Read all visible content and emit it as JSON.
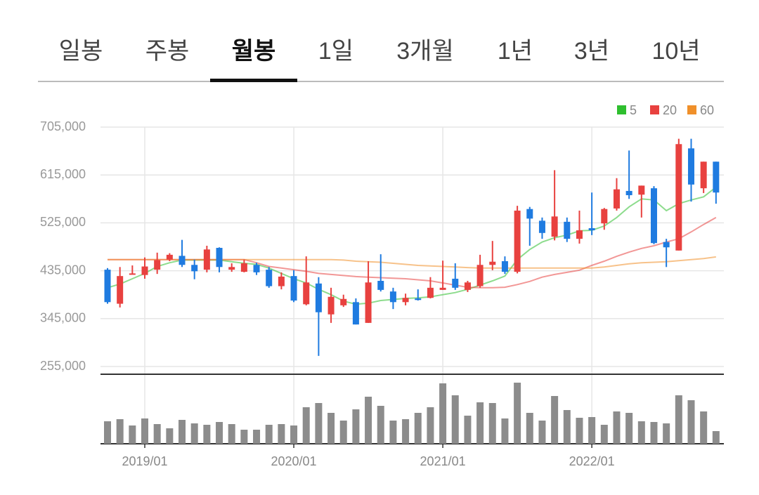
{
  "tabs": [
    "일봉",
    "주봉",
    "월봉",
    "1일",
    "3개월",
    "1년",
    "3년",
    "10년"
  ],
  "selected_tab": 2,
  "chart_data": {
    "type": "candlestick",
    "categories": [
      null,
      null,
      null,
      "2019/01",
      null,
      null,
      null,
      null,
      null,
      null,
      null,
      null,
      null,
      null,
      null,
      "2020/01",
      null,
      null,
      null,
      null,
      null,
      null,
      null,
      null,
      null,
      null,
      null,
      "2021/01",
      null,
      null,
      null,
      null,
      null,
      null,
      null,
      null,
      null,
      null,
      null,
      "2022/01",
      null,
      null,
      null,
      null,
      null,
      null,
      null,
      null,
      null,
      null
    ],
    "open": [
      437000,
      373000,
      428000,
      427000,
      437000,
      456000,
      463000,
      446000,
      437000,
      478000,
      437000,
      433000,
      446000,
      437000,
      406000,
      425000,
      372000,
      411000,
      353000,
      370000,
      376000,
      337000,
      416000,
      396000,
      376000,
      383000,
      384000,
      399000,
      420000,
      399000,
      406000,
      446000,
      453000,
      433000,
      551000,
      529000,
      499000,
      527000,
      495000,
      515000,
      524000,
      552000,
      585000,
      578000,
      590000,
      489000,
      473000,
      665000,
      590000,
      640000
    ],
    "high": [
      440000,
      442000,
      445000,
      460000,
      469000,
      468000,
      493000,
      456000,
      482000,
      479000,
      449000,
      456000,
      450000,
      442000,
      432000,
      436000,
      462000,
      423000,
      403000,
      390000,
      383000,
      453000,
      466000,
      403000,
      392000,
      400000,
      423000,
      454000,
      449000,
      416000,
      465000,
      491000,
      462000,
      557000,
      555000,
      535000,
      624000,
      535000,
      548000,
      582000,
      553000,
      609000,
      661000,
      595000,
      594000,
      495000,
      683000,
      683000,
      640000,
      640000
    ],
    "low": [
      373000,
      366000,
      428000,
      420000,
      429000,
      453000,
      442000,
      419000,
      432000,
      432000,
      433000,
      432000,
      427000,
      403000,
      400000,
      376000,
      370000,
      275000,
      337000,
      367000,
      334000,
      337000,
      396000,
      363000,
      370000,
      379000,
      383000,
      399000,
      399000,
      395000,
      403000,
      436000,
      429000,
      430000,
      482000,
      495000,
      492000,
      489000,
      486000,
      502000,
      512000,
      548000,
      570000,
      535000,
      485000,
      442000,
      473000,
      565000,
      581000,
      561000
    ],
    "close": [
      376000,
      425000,
      430000,
      443000,
      455000,
      465000,
      446000,
      434000,
      475000,
      442000,
      442000,
      449000,
      432000,
      406000,
      424000,
      379000,
      413000,
      357000,
      386000,
      382000,
      334000,
      413000,
      399000,
      376000,
      384000,
      380000,
      403000,
      403000,
      403000,
      413000,
      446000,
      452000,
      433000,
      548000,
      533000,
      506000,
      537000,
      495000,
      511000,
      511000,
      551000,
      588000,
      577000,
      595000,
      487000,
      479000,
      673000,
      597000,
      640000,
      582000
    ],
    "up_color": "#e8413f",
    "down_color": "#1f7be0",
    "series": [
      {
        "name": "5",
        "color": "#2fbf2f",
        "values": [
          403000,
          410000,
          420000,
          430000,
          443000,
          450000,
          455000,
          455000,
          455000,
          455000,
          452000,
          449000,
          447000,
          440000,
          430000,
          420000,
          412000,
          400000,
          390000,
          378000,
          372000,
          374000,
          379000,
          381000,
          383000,
          384000,
          386000,
          390000,
          394000,
          400000,
          408000,
          416000,
          425000,
          456000,
          475000,
          489000,
          497000,
          502000,
          510000,
          511000,
          519000,
          535000,
          555000,
          570000,
          568000,
          548000,
          561000,
          568000,
          574000,
          592000
        ]
      },
      {
        "name": "20",
        "color": "#e8413f",
        "values": [
          456000,
          456000,
          456000,
          456000,
          456000,
          456000,
          456000,
          456000,
          456000,
          456000,
          456000,
          456000,
          450000,
          443000,
          440000,
          437000,
          434000,
          430000,
          428000,
          426000,
          424000,
          423000,
          422000,
          421000,
          420000,
          418000,
          416000,
          412000,
          408000,
          404000,
          403000,
          403000,
          404000,
          409000,
          415000,
          423000,
          428000,
          432000,
          436000,
          445000,
          453000,
          462000,
          470000,
          477000,
          482000,
          489000,
          495000,
          508000,
          522000,
          535000
        ]
      },
      {
        "name": "60",
        "color": "#f0902a",
        "values": [
          456000,
          456000,
          456000,
          456000,
          456000,
          456000,
          456000,
          456000,
          456000,
          456000,
          456000,
          456000,
          456000,
          456000,
          456000,
          456000,
          456000,
          456000,
          456000,
          455000,
          453000,
          452000,
          451000,
          449000,
          447000,
          445000,
          444000,
          443000,
          442000,
          441000,
          440000,
          440000,
          440000,
          440000,
          440000,
          440000,
          440000,
          440000,
          440000,
          440000,
          442000,
          445000,
          448000,
          450000,
          451000,
          452000,
          454000,
          456000,
          458000,
          461000
        ]
      }
    ],
    "ylim": [
      255000,
      705000
    ],
    "yticks": [
      {
        "value": 255000,
        "label": "255,000"
      },
      {
        "value": 345000,
        "label": "345,000"
      },
      {
        "value": 435000,
        "label": "435,000"
      },
      {
        "value": 525000,
        "label": "525,000"
      },
      {
        "value": 615000,
        "label": "615,000"
      },
      {
        "value": 705000,
        "label": "705,000"
      }
    ],
    "grid": true,
    "volume": {
      "color": "#8c8c8c",
      "ylim": [
        0,
        99
      ],
      "values": [
        32,
        35,
        26,
        36,
        28,
        22,
        34,
        29,
        27,
        31,
        28,
        20,
        20,
        27,
        28,
        26,
        52,
        58,
        44,
        33,
        49,
        67,
        54,
        33,
        35,
        44,
        52,
        86,
        69,
        40,
        59,
        58,
        36,
        87,
        44,
        33,
        68,
        48,
        37,
        38,
        27,
        46,
        44,
        32,
        31,
        29,
        69,
        62,
        46,
        18
      ]
    }
  }
}
